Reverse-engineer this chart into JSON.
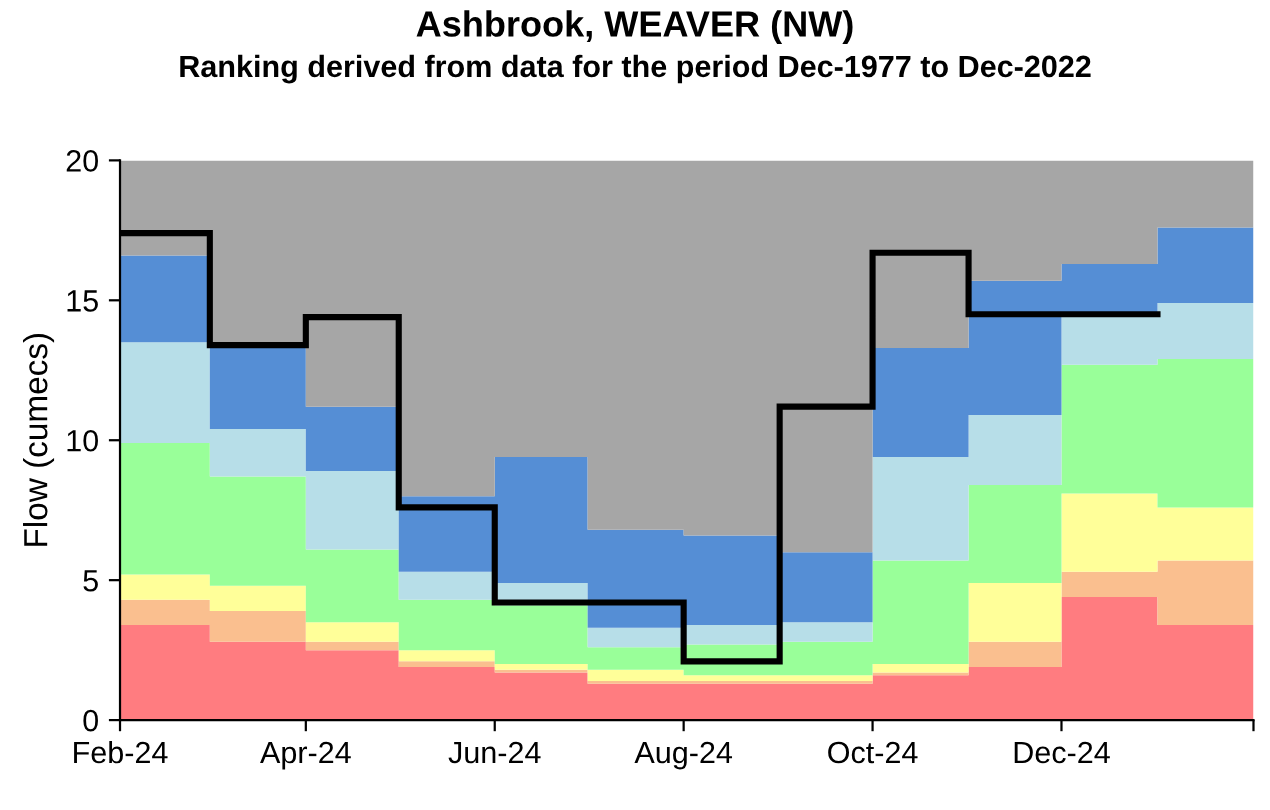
{
  "chart_data": {
    "type": "area",
    "title": "Ashbrook, WEAVER (NW)",
    "subtitle": "Ranking derived from data for the period Dec-1977 to Dec-2022",
    "ylabel": "Flow (cumecs)",
    "stacked": true,
    "x": [
      "2024-02",
      "2024-03",
      "2024-04",
      "2024-05",
      "2024-06",
      "2024-07",
      "2024-08",
      "2024-09",
      "2024-10",
      "2024-11",
      "2024-12",
      "2025-01",
      "2025-02"
    ],
    "series": [
      {
        "color": "#ff7c80",
        "values": [
          3.4,
          2.8,
          2.5,
          1.9,
          1.7,
          1.3,
          1.3,
          1.3,
          1.6,
          1.9,
          4.4,
          3.4,
          3.4
        ]
      },
      {
        "color": "#fabf8f",
        "values": [
          0.9,
          1.1,
          0.3,
          0.2,
          0.1,
          0.1,
          0.1,
          0.1,
          0.1,
          0.9,
          0.9,
          2.3,
          2.3
        ]
      },
      {
        "color": "#ffff99",
        "values": [
          0.9,
          0.9,
          0.7,
          0.4,
          0.2,
          0.4,
          0.2,
          0.2,
          0.3,
          2.1,
          2.8,
          1.9,
          1.9
        ]
      },
      {
        "color": "#99ff99",
        "values": [
          4.7,
          3.9,
          2.6,
          1.8,
          2.1,
          0.8,
          1.1,
          1.2,
          3.7,
          3.5,
          4.6,
          5.3,
          5.3
        ]
      },
      {
        "color": "#b7dee8",
        "values": [
          3.6,
          1.7,
          2.8,
          1.0,
          0.8,
          0.7,
          0.7,
          0.7,
          3.7,
          2.5,
          1.7,
          2.0,
          2.0
        ]
      },
      {
        "color": "#558ed5",
        "values": [
          3.1,
          3.0,
          2.3,
          2.7,
          4.5,
          3.5,
          3.2,
          2.5,
          3.9,
          4.8,
          1.9,
          2.7,
          2.7
        ]
      },
      {
        "color": "#a6a6a6",
        "values": [
          3.4,
          6.6,
          8.8,
          12.0,
          10.6,
          13.2,
          13.4,
          14.0,
          6.7,
          4.3,
          3.7,
          2.4,
          2.4
        ]
      },
      {
        "type": "step",
        "color": "#000000",
        "values": [
          17.4,
          13.4,
          14.4,
          7.6,
          4.2,
          4.2,
          2.1,
          11.2,
          16.7,
          14.5,
          14.5,
          14.5,
          null
        ]
      }
    ],
    "xlim": [
      "2024-02",
      "2025-02"
    ],
    "xticks": [
      {
        "value": "2024-02",
        "label": "Feb-24"
      },
      {
        "value": "2024-04",
        "label": "Apr-24"
      },
      {
        "value": "2024-06",
        "label": "Jun-24"
      },
      {
        "value": "2024-08",
        "label": "Aug-24"
      },
      {
        "value": "2024-10",
        "label": "Oct-24"
      },
      {
        "value": "2024-12",
        "label": "Dec-24"
      },
      {
        "value": "2025-02",
        "label": null
      }
    ],
    "ylim": [
      0,
      20
    ],
    "yticks": [
      0,
      5,
      10,
      15,
      20
    ],
    "grid": false,
    "legend": false
  }
}
